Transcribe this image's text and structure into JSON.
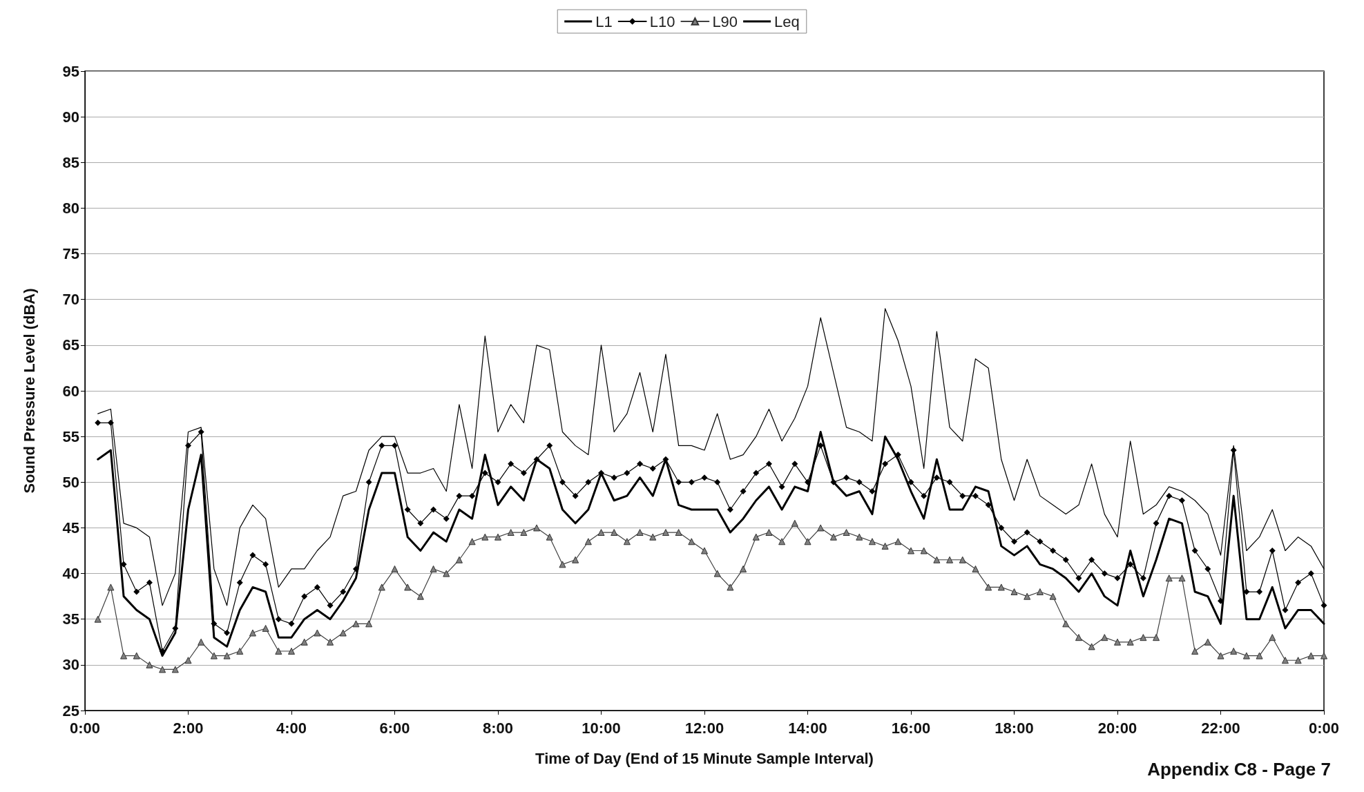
{
  "chart_data": {
    "type": "line",
    "xlabel": "Time of Day (End of 15 Minute Sample Interval)",
    "ylabel": "Sound Pressure Level (dBA)",
    "annotations": [
      "Appendix C8 - Page 7"
    ],
    "x": [
      0.25,
      0.5,
      0.75,
      1,
      1.25,
      1.5,
      1.75,
      2,
      2.25,
      2.5,
      2.75,
      3,
      3.25,
      3.5,
      3.75,
      4,
      4.25,
      4.5,
      4.75,
      5,
      5.25,
      5.5,
      5.75,
      6,
      6.25,
      6.5,
      6.75,
      7,
      7.25,
      7.5,
      7.75,
      8,
      8.25,
      8.5,
      8.75,
      9,
      9.25,
      9.5,
      9.75,
      10,
      10.25,
      10.5,
      10.75,
      11,
      11.25,
      11.5,
      11.75,
      12,
      12.25,
      12.5,
      12.75,
      13,
      13.25,
      13.5,
      13.75,
      14,
      14.25,
      14.5,
      14.75,
      15,
      15.25,
      15.5,
      15.75,
      16,
      16.25,
      16.5,
      16.75,
      17,
      17.25,
      17.5,
      17.75,
      18,
      18.25,
      18.5,
      18.75,
      19,
      19.25,
      19.5,
      19.75,
      20,
      20.25,
      20.5,
      20.75,
      21,
      21.25,
      21.5,
      21.75,
      22,
      22.25,
      22.5,
      22.75,
      23,
      23.25,
      23.5,
      23.75,
      24
    ],
    "series": [
      {
        "name": "L1",
        "color": "#000000",
        "marker": "none",
        "values": [
          57.5,
          58,
          45.5,
          45,
          44,
          36.5,
          40,
          55.5,
          56,
          40.5,
          36.5,
          45,
          47.5,
          46,
          38.5,
          40.5,
          40.5,
          42.5,
          44,
          48.5,
          49,
          53.5,
          55,
          55,
          51,
          51,
          51.5,
          49,
          58.5,
          51.5,
          66,
          55.5,
          58.5,
          56.5,
          65,
          64.5,
          55.5,
          54,
          53,
          65,
          55.5,
          57.5,
          62,
          55.5,
          64,
          54,
          54,
          53.5,
          57.5,
          52.5,
          53,
          55,
          58,
          54.5,
          57,
          60.5,
          68,
          62,
          56,
          55.5,
          54.5,
          69,
          65.5,
          60.5,
          51.5,
          66.5,
          56,
          54.5,
          63.5,
          62.5,
          52.5,
          48,
          52.5,
          48.5,
          47.5,
          46.5,
          47.5,
          52,
          46.5,
          44,
          54.5,
          46.5,
          47.5,
          49.5,
          49,
          48,
          46.5,
          42,
          54,
          42.5,
          44,
          47,
          42.5,
          44,
          43,
          40.5
        ]
      },
      {
        "name": "L10",
        "color": "#000000",
        "marker": "diamond",
        "values": [
          56.5,
          56.5,
          41,
          38,
          39,
          31.5,
          34,
          54,
          55.5,
          34.5,
          33.5,
          39,
          42,
          41,
          35,
          34.5,
          37.5,
          38.5,
          36.5,
          38,
          40.5,
          50,
          54,
          54,
          47,
          45.5,
          47,
          46,
          48.5,
          48.5,
          51,
          50,
          52,
          51,
          52.5,
          54,
          50,
          48.5,
          50,
          51,
          50.5,
          51,
          52,
          51.5,
          52.5,
          50,
          50,
          50.5,
          50,
          47,
          49,
          51,
          52,
          49.5,
          52,
          50,
          54,
          50,
          50.5,
          50,
          49,
          52,
          53,
          50,
          48.5,
          50.5,
          50,
          48.5,
          48.5,
          47.5,
          45,
          43.5,
          44.5,
          43.5,
          42.5,
          41.5,
          39.5,
          41.5,
          40,
          39.5,
          41,
          39.5,
          45.5,
          48.5,
          48,
          42.5,
          40.5,
          37,
          53.5,
          38,
          38,
          42.5,
          36,
          39,
          40,
          36.5
        ]
      },
      {
        "name": "L90",
        "color": "#808080",
        "marker": "triangle",
        "values": [
          35,
          38.5,
          31,
          31,
          30,
          29.5,
          29.5,
          30.5,
          32.5,
          31,
          31,
          31.5,
          33.5,
          34,
          31.5,
          31.5,
          32.5,
          33.5,
          32.5,
          33.5,
          34.5,
          34.5,
          38.5,
          40.5,
          38.5,
          37.5,
          40.5,
          40,
          41.5,
          43.5,
          44,
          44,
          44.5,
          44.5,
          45,
          44,
          41,
          41.5,
          43.5,
          44.5,
          44.5,
          43.5,
          44.5,
          44,
          44.5,
          44.5,
          43.5,
          42.5,
          40,
          38.5,
          40.5,
          44,
          44.5,
          43.5,
          45.5,
          43.5,
          45,
          44,
          44.5,
          44,
          43.5,
          43,
          43.5,
          42.5,
          42.5,
          41.5,
          41.5,
          41.5,
          40.5,
          38.5,
          38.5,
          38,
          37.5,
          38,
          37.5,
          34.5,
          33,
          32,
          33,
          32.5,
          32.5,
          33,
          33,
          39.5,
          39.5,
          31.5,
          32.5,
          31,
          31.5,
          31,
          31,
          33,
          30.5,
          30.5,
          31,
          31
        ]
      },
      {
        "name": "Leq",
        "color": "#000000",
        "marker": "none",
        "values": [
          52.5,
          53.5,
          37.5,
          36,
          35,
          31,
          33.5,
          47,
          53,
          33,
          32,
          36,
          38.5,
          38,
          33,
          33,
          35,
          36,
          35,
          37,
          39.5,
          47,
          51,
          51,
          44,
          42.5,
          44.5,
          43.5,
          47,
          46,
          53,
          47.5,
          49.5,
          48,
          52.5,
          51.5,
          47,
          45.5,
          47,
          51,
          48,
          48.5,
          50.5,
          48.5,
          52.5,
          47.5,
          47,
          47,
          47,
          44.5,
          46,
          48,
          49.5,
          47,
          49.5,
          49,
          55.5,
          50,
          48.5,
          49,
          46.5,
          55,
          52.5,
          49,
          46,
          52.5,
          47,
          47,
          49.5,
          49,
          43,
          42,
          43,
          41,
          40.5,
          39.5,
          38,
          40,
          37.5,
          36.5,
          42.5,
          37.5,
          41.5,
          46,
          45.5,
          38,
          37.5,
          34.5,
          48.5,
          35,
          35,
          38.5,
          34,
          36,
          36,
          34.5
        ]
      }
    ],
    "xlim": [
      0,
      24
    ],
    "xticks": [
      {
        "value": 0,
        "label": "0:00"
      },
      {
        "value": 2,
        "label": "2:00"
      },
      {
        "value": 4,
        "label": "4:00"
      },
      {
        "value": 6,
        "label": "6:00"
      },
      {
        "value": 8,
        "label": "8:00"
      },
      {
        "value": 10,
        "label": "10:00"
      },
      {
        "value": 12,
        "label": "12:00"
      },
      {
        "value": 14,
        "label": "14:00"
      },
      {
        "value": 16,
        "label": "16:00"
      },
      {
        "value": 18,
        "label": "18:00"
      },
      {
        "value": 20,
        "label": "20:00"
      },
      {
        "value": 22,
        "label": "22:00"
      },
      {
        "value": 24,
        "label": "0:00"
      }
    ],
    "ylim": [
      25,
      95
    ],
    "yticks": [
      25,
      30,
      35,
      40,
      45,
      50,
      55,
      60,
      65,
      70,
      75,
      80,
      85,
      90,
      95
    ],
    "grid": "y",
    "legend": "top"
  }
}
